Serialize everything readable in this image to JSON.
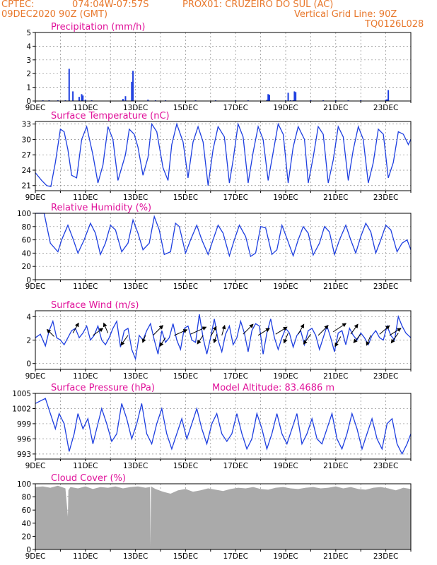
{
  "header": {
    "line1_left": "CPTEC:",
    "line1_coords": "074:04W-07:57S",
    "line1_station": "PROX01: CRUZEIRO DO SUL (AC)",
    "line2_left": "09DEC2020 90Z (GMT)",
    "line2_right": "Vertical Grid Line: 90Z",
    "line3_right": "TQ0126L028"
  },
  "colors": {
    "line": "#1e3fe0",
    "title": "#e0129a",
    "header": "#e8782c",
    "cloud": "#aaaaaa",
    "arrow": "#000000"
  },
  "chart_data": [
    {
      "type": "bar",
      "title": "Precipitation (mm/h)",
      "ylim": [
        0,
        5
      ],
      "yticks": [
        "0",
        "1",
        "2",
        "3",
        "4",
        "5"
      ],
      "xticks": [
        "9DEC",
        "11DEC",
        "13DEC",
        "15DEC",
        "17DEC",
        "19DEC",
        "21DEC",
        "23DEC"
      ],
      "grid": true,
      "x": [
        0.3,
        0.55,
        0.9,
        1.2,
        1.35,
        1.5,
        1.75,
        1.85,
        1.9,
        2.0,
        2.25,
        3.5,
        3.6,
        3.85,
        3.9,
        4.5,
        4.8,
        5.2,
        6.4,
        7.2,
        8.0,
        8.5,
        9.25,
        9.3,
        9.35,
        10.0,
        10.1,
        10.2,
        10.3,
        10.35,
        10.4,
        11.0,
        11.5,
        12.0,
        12.5,
        13.0,
        14.0,
        14.05,
        14.1
      ],
      "values": [
        0.05,
        0.05,
        0.05,
        0.05,
        2.35,
        0.7,
        0.3,
        0.5,
        0.4,
        0.1,
        0.05,
        0.15,
        0.35,
        1.4,
        2.2,
        0.1,
        0.05,
        0.05,
        0.05,
        0.05,
        0.05,
        0.05,
        0.08,
        0.5,
        0.45,
        0.05,
        0.6,
        0.05,
        0.05,
        0.7,
        0.65,
        0.05,
        0.05,
        0.05,
        0.05,
        0.05,
        0.1,
        0.12,
        0.8
      ]
    },
    {
      "type": "line",
      "title": "Surface Temperature (nC)",
      "ylim": [
        20,
        33.5
      ],
      "yticks": [
        "21",
        "24",
        "27",
        "30",
        "33"
      ],
      "ytick_values": [
        21,
        24,
        27,
        30,
        33
      ],
      "xticks": [
        "9DEC",
        "11DEC",
        "13DEC",
        "15DEC",
        "17DEC",
        "19DEC",
        "21DEC",
        "23DEC"
      ],
      "grid": true,
      "x": [
        0.0,
        0.25,
        0.45,
        0.62,
        0.8,
        1.0,
        1.15,
        1.3,
        1.45,
        1.65,
        1.85,
        2.05,
        2.3,
        2.5,
        2.7,
        2.9,
        3.1,
        3.3,
        3.6,
        3.75,
        3.95,
        4.1,
        4.3,
        4.5,
        4.65,
        4.85,
        5.1,
        5.3,
        5.45,
        5.65,
        5.9,
        6.1,
        6.3,
        6.5,
        6.7,
        6.9,
        7.1,
        7.3,
        7.55,
        7.75,
        7.9,
        8.1,
        8.3,
        8.5,
        8.7,
        8.9,
        9.1,
        9.3,
        9.5,
        9.7,
        9.9,
        10.1,
        10.3,
        10.5,
        10.75,
        10.9,
        11.1,
        11.3,
        11.5,
        11.7,
        11.9,
        12.1,
        12.3,
        12.5,
        12.7,
        12.9,
        13.1,
        13.3,
        13.5,
        13.7,
        13.9,
        14.1,
        14.3,
        14.5,
        14.7,
        14.9,
        15.0
      ],
      "values": [
        23.5,
        22.0,
        21.0,
        20.8,
        25.5,
        32.0,
        31.5,
        28.0,
        23.0,
        22.5,
        30.0,
        32.5,
        27.0,
        21.5,
        25.0,
        32.5,
        30.0,
        22.0,
        27.0,
        32.0,
        31.0,
        28.5,
        23.0,
        26.5,
        33.0,
        31.5,
        24.5,
        22.0,
        29.0,
        33.0,
        29.5,
        22.5,
        29.5,
        32.5,
        29.5,
        21.0,
        28.0,
        32.5,
        30.5,
        21.5,
        26.0,
        33.0,
        30.5,
        21.5,
        27.5,
        32.5,
        30.0,
        22.0,
        27.5,
        33.0,
        31.0,
        21.5,
        28.5,
        32.5,
        30.0,
        21.5,
        26.5,
        32.5,
        31.0,
        21.5,
        26.0,
        32.5,
        30.5,
        22.0,
        28.0,
        32.5,
        30.0,
        21.5,
        25.5,
        32.0,
        31.0,
        22.5,
        25.5,
        31.5,
        31.0,
        29.0,
        30.0
      ]
    },
    {
      "type": "line",
      "title": "Relative Humidity (%)",
      "ylim": [
        0,
        100
      ],
      "yticks": [
        "0",
        "20",
        "40",
        "60",
        "80",
        "100"
      ],
      "ytick_values": [
        0,
        20,
        40,
        60,
        80,
        100
      ],
      "xticks": [
        "9DEC",
        "11DEC",
        "13DEC",
        "15DEC",
        "17DEC",
        "19DEC",
        "21DEC",
        "23DEC"
      ],
      "grid": true,
      "x": [
        0.0,
        0.2,
        0.35,
        0.6,
        0.9,
        1.05,
        1.3,
        1.5,
        1.7,
        1.95,
        2.2,
        2.4,
        2.6,
        2.8,
        3.0,
        3.2,
        3.45,
        3.7,
        3.9,
        4.1,
        4.3,
        4.55,
        4.75,
        4.95,
        5.15,
        5.4,
        5.6,
        5.75,
        6.0,
        6.2,
        6.45,
        6.65,
        6.9,
        7.1,
        7.3,
        7.5,
        7.75,
        7.95,
        8.15,
        8.4,
        8.6,
        8.8,
        9.0,
        9.2,
        9.45,
        9.65,
        9.85,
        10.05,
        10.3,
        10.5,
        10.7,
        10.9,
        11.1,
        11.35,
        11.55,
        11.75,
        11.95,
        12.15,
        12.4,
        12.6,
        12.8,
        13.0,
        13.2,
        13.4,
        13.6,
        13.8,
        14.0,
        14.2,
        14.45,
        14.65,
        14.85,
        15.0
      ],
      "values": [
        100,
        100,
        100,
        55,
        42,
        60,
        82,
        62,
        40,
        60,
        85,
        70,
        38,
        55,
        82,
        75,
        42,
        55,
        90,
        70,
        45,
        55,
        95,
        75,
        38,
        42,
        85,
        80,
        40,
        60,
        82,
        60,
        38,
        60,
        82,
        70,
        36,
        60,
        82,
        65,
        35,
        40,
        80,
        78,
        38,
        45,
        82,
        62,
        36,
        60,
        80,
        70,
        37,
        55,
        80,
        72,
        38,
        60,
        82,
        60,
        40,
        65,
        85,
        72,
        40,
        60,
        82,
        75,
        42,
        55,
        60,
        45
      ]
    },
    {
      "type": "line",
      "title": "Surface Wind (m/s)",
      "ylim": [
        -0.5,
        4.5
      ],
      "yticks": [
        "0",
        "2",
        "4"
      ],
      "ytick_values": [
        0,
        2,
        4
      ],
      "xticks": [
        "9DEC",
        "11DEC",
        "13DEC",
        "15DEC",
        "17DEC",
        "19DEC",
        "21DEC",
        "23DEC"
      ],
      "grid": true,
      "x": [
        0.0,
        0.2,
        0.4,
        0.55,
        0.7,
        0.85,
        1.0,
        1.15,
        1.3,
        1.45,
        1.6,
        1.75,
        1.9,
        2.05,
        2.2,
        2.35,
        2.5,
        2.65,
        2.8,
        2.95,
        3.1,
        3.25,
        3.4,
        3.55,
        3.7,
        3.85,
        4.0,
        4.15,
        4.3,
        4.45,
        4.6,
        4.75,
        4.9,
        5.05,
        5.2,
        5.35,
        5.5,
        5.65,
        5.8,
        5.95,
        6.1,
        6.25,
        6.4,
        6.55,
        6.7,
        6.85,
        7.0,
        7.15,
        7.3,
        7.45,
        7.6,
        7.75,
        7.9,
        8.05,
        8.2,
        8.35,
        8.5,
        8.65,
        8.8,
        8.95,
        9.1,
        9.25,
        9.4,
        9.55,
        9.7,
        9.85,
        10.0,
        10.15,
        10.3,
        10.45,
        10.6,
        10.75,
        10.9,
        11.05,
        11.2,
        11.35,
        11.5,
        11.65,
        11.8,
        11.95,
        12.1,
        12.25,
        12.4,
        12.55,
        12.7,
        12.85,
        13.0,
        13.15,
        13.3,
        13.45,
        13.6,
        13.75,
        13.9,
        14.05,
        14.2,
        14.35,
        14.5,
        14.65,
        14.8,
        15.0
      ],
      "values": [
        2.2,
        2.5,
        1.5,
        2.8,
        3.6,
        2.2,
        2.0,
        1.6,
        2.2,
        2.8,
        3.0,
        2.2,
        2.6,
        3.2,
        2.0,
        2.4,
        3.2,
        2.0,
        1.6,
        2.2,
        3.0,
        3.6,
        1.4,
        2.8,
        3.0,
        1.2,
        0.4,
        2.4,
        2.0,
        2.8,
        3.4,
        2.0,
        0.8,
        2.8,
        1.8,
        2.2,
        3.4,
        2.0,
        1.2,
        3.0,
        3.2,
        2.0,
        1.8,
        4.2,
        2.2,
        0.8,
        2.2,
        3.8,
        2.0,
        1.0,
        2.5,
        3.2,
        1.6,
        2.2,
        3.6,
        2.6,
        1.0,
        2.8,
        3.4,
        3.2,
        0.8,
        2.6,
        3.8,
        2.2,
        1.2,
        2.2,
        3.0,
        2.6,
        1.4,
        2.4,
        2.8,
        1.6,
        2.8,
        3.0,
        2.4,
        1.2,
        2.2,
        3.2,
        2.2,
        1.0,
        2.6,
        2.8,
        1.6,
        3.0,
        2.4,
        2.0,
        2.6,
        2.2,
        1.6,
        2.4,
        2.8,
        2.2,
        2.0,
        3.2,
        2.4,
        2.0,
        4.0,
        3.2,
        2.6,
        2.2
      ],
      "arrows_x": [
        0.75,
        1.5,
        2.3,
        2.9,
        3.7,
        4.4,
        4.7,
        5.2,
        5.55,
        6.2,
        6.7,
        7.0,
        7.25,
        7.45,
        8.3,
        8.9,
        9.6,
        10.1,
        10.5,
        11.0,
        11.3,
        11.9,
        12.2,
        12.6,
        13.0,
        13.4,
        13.75,
        14.15,
        14.5
      ],
      "arrows_y": [
        2.3,
        2.6,
        2.4,
        2.6,
        2.4,
        2.4,
        2.4,
        2.2,
        2.4,
        2.5,
        2.4,
        2.3,
        2.5,
        2.4,
        2.5,
        2.4,
        2.5,
        2.6,
        2.5,
        2.5,
        2.4,
        2.7,
        2.3,
        2.5,
        2.5,
        2.4,
        2.5,
        2.4,
        2.6
      ],
      "arrows_dx": [
        -10,
        8,
        14,
        -6,
        -10,
        -4,
        14,
        -8,
        18,
        22,
        -8,
        8,
        -4,
        4,
        14,
        16,
        16,
        -6,
        8,
        -10,
        14,
        18,
        -8,
        10,
        -10,
        -6,
        14,
        16,
        -10
      ],
      "arrows_dy": [
        -10,
        -14,
        -10,
        -14,
        14,
        10,
        -14,
        12,
        -8,
        -10,
        12,
        -14,
        12,
        -14,
        -14,
        -10,
        -10,
        14,
        -14,
        14,
        -14,
        -12,
        14,
        -14,
        12,
        14,
        -12,
        -10,
        14
      ]
    },
    {
      "type": "line",
      "title": "Surface Pressure (hPa)",
      "subtitle": "Model Altitude: 83.4686 m",
      "ylim": [
        992,
        1005
      ],
      "yticks": [
        "993",
        "996",
        "999",
        "1002",
        "1005"
      ],
      "ytick_values": [
        993,
        996,
        999,
        1002,
        1005
      ],
      "xticks": [
        "9DEC",
        "11DEC",
        "13DEC",
        "15DEC",
        "17DEC",
        "19DEC",
        "21DEC",
        "23DEC"
      ],
      "grid": true,
      "x": [
        0.0,
        0.2,
        0.4,
        0.6,
        0.8,
        0.95,
        1.15,
        1.35,
        1.55,
        1.7,
        1.9,
        2.1,
        2.3,
        2.45,
        2.65,
        2.85,
        3.05,
        3.25,
        3.45,
        3.65,
        3.85,
        4.05,
        4.25,
        4.45,
        4.65,
        4.85,
        5.05,
        5.25,
        5.45,
        5.65,
        5.85,
        6.05,
        6.25,
        6.45,
        6.65,
        6.85,
        7.05,
        7.25,
        7.45,
        7.65,
        7.85,
        8.05,
        8.25,
        8.45,
        8.65,
        8.85,
        9.05,
        9.25,
        9.45,
        9.65,
        9.85,
        10.05,
        10.25,
        10.45,
        10.65,
        10.85,
        11.05,
        11.25,
        11.45,
        11.65,
        11.85,
        12.05,
        12.25,
        12.45,
        12.65,
        12.85,
        13.05,
        13.25,
        13.45,
        13.65,
        13.85,
        14.05,
        14.25,
        14.45,
        14.65,
        14.85,
        15.0
      ],
      "values": [
        1003,
        1003.5,
        1004,
        1001,
        998,
        1001,
        999,
        993.5,
        997,
        1001,
        998,
        1000,
        995,
        998,
        1002,
        999,
        995.5,
        997,
        1003,
        1000,
        996,
        999,
        1003,
        997,
        995,
        999,
        1002,
        997,
        994,
        997,
        1000,
        996,
        999,
        1002,
        998,
        995,
        999,
        1001,
        997,
        995.5,
        997,
        1001,
        997,
        994,
        996,
        1001,
        998,
        994,
        997,
        1001,
        997,
        995,
        998,
        1001,
        995,
        997,
        1000,
        996,
        995,
        998,
        1001,
        996,
        994,
        997,
        1001,
        998,
        994,
        997,
        1000,
        996,
        994,
        999,
        1000,
        995,
        993,
        995,
        997
      ]
    },
    {
      "type": "area",
      "title": "Cloud Cover (%)",
      "ylim": [
        0,
        100
      ],
      "yticks": [
        "0",
        "20",
        "40",
        "60",
        "80",
        "100"
      ],
      "ytick_values": [
        0,
        20,
        40,
        60,
        80,
        100
      ],
      "xticks": [
        "9DEC",
        "11DEC",
        "13DEC",
        "15DEC",
        "17DEC",
        "19DEC",
        "21DEC",
        "23DEC"
      ],
      "grid": true,
      "x": [
        0.0,
        0.3,
        0.6,
        0.9,
        1.2,
        1.3,
        1.32,
        1.4,
        1.7,
        2.0,
        2.3,
        2.6,
        2.9,
        3.2,
        3.5,
        3.8,
        4.1,
        4.4,
        4.58,
        4.6,
        4.62,
        4.8,
        5.1,
        5.4,
        5.7,
        6.0,
        6.3,
        6.6,
        6.9,
        7.2,
        7.5,
        7.8,
        8.1,
        8.4,
        8.7,
        9.0,
        9.3,
        9.6,
        9.9,
        10.2,
        10.5,
        10.8,
        11.1,
        11.4,
        11.7,
        12.0,
        12.3,
        12.6,
        12.9,
        13.2,
        13.5,
        13.8,
        14.1,
        14.4,
        14.7,
        15.0
      ],
      "values": [
        95,
        96,
        94,
        97,
        93,
        50,
        90,
        95,
        93,
        96,
        92,
        95,
        94,
        96,
        93,
        95,
        96,
        94,
        95,
        5,
        96,
        92,
        88,
        85,
        90,
        92,
        88,
        90,
        93,
        91,
        89,
        92,
        94,
        93,
        95,
        92,
        91,
        94,
        95,
        93,
        92,
        94,
        95,
        93,
        94,
        96,
        93,
        95,
        92,
        91,
        94,
        95,
        93,
        90,
        94,
        92
      ]
    }
  ]
}
